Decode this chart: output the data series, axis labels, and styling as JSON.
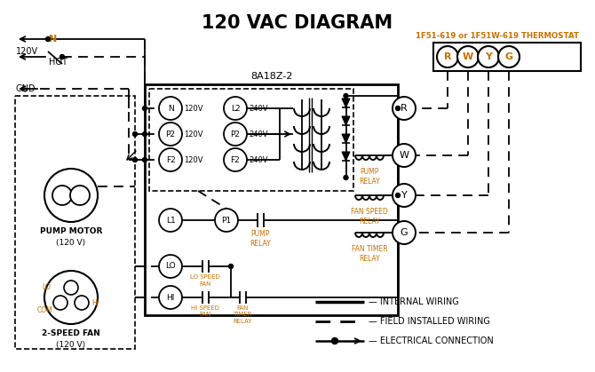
{
  "title": "120 VAC DIAGRAM",
  "bg_color": "#ffffff",
  "line_color": "#000000",
  "orange_color": "#c87000",
  "thermostat_label": "1F51-619 or 1F51W-619 THERMOSTAT",
  "box8a_label": "8A18Z-2",
  "terminal_labels": [
    "R",
    "W",
    "Y",
    "G"
  ],
  "fig_w": 6.7,
  "fig_h": 4.19,
  "dpi": 100
}
